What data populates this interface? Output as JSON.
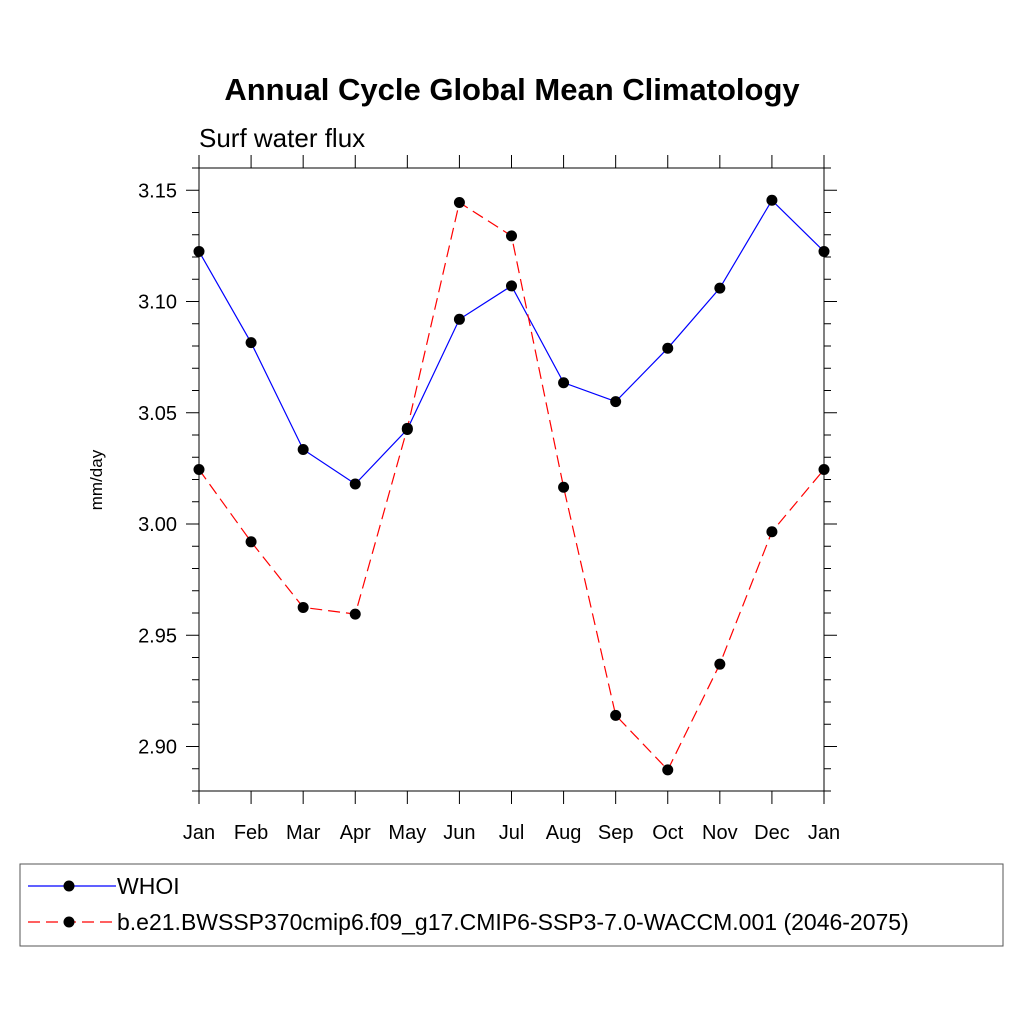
{
  "chart_data": {
    "type": "line",
    "title": "Annual Cycle Global Mean Climatology",
    "subtitle": "Surf water flux",
    "xlabel": "",
    "ylabel": "mm/day",
    "categories": [
      "Jan",
      "Feb",
      "Mar",
      "Apr",
      "May",
      "Jun",
      "Jul",
      "Aug",
      "Sep",
      "Oct",
      "Nov",
      "Dec",
      "Jan"
    ],
    "ylim": [
      2.88,
      3.16
    ],
    "yticks": [
      "2.90",
      "2.95",
      "3.00",
      "3.05",
      "3.10",
      "3.15"
    ],
    "legend_position": "bottom",
    "series": [
      {
        "name": "WHOI",
        "color": "#0000ff",
        "dash": "solid",
        "values": [
          3.1225,
          3.0815,
          3.0335,
          3.018,
          3.0425,
          3.092,
          3.107,
          3.0635,
          3.055,
          3.079,
          3.106,
          3.1455,
          3.1225
        ]
      },
      {
        "name": "b.e21.BWSSP370cmip6.f09_g17.CMIP6-SSP3-7.0-WACCM.001 (2046-2075)",
        "color": "#ff0000",
        "dash": "dashed",
        "values": [
          3.0245,
          2.992,
          2.9625,
          2.9595,
          3.043,
          3.1445,
          3.1295,
          3.0165,
          2.914,
          2.8895,
          2.937,
          2.9965,
          3.0245
        ]
      }
    ]
  }
}
